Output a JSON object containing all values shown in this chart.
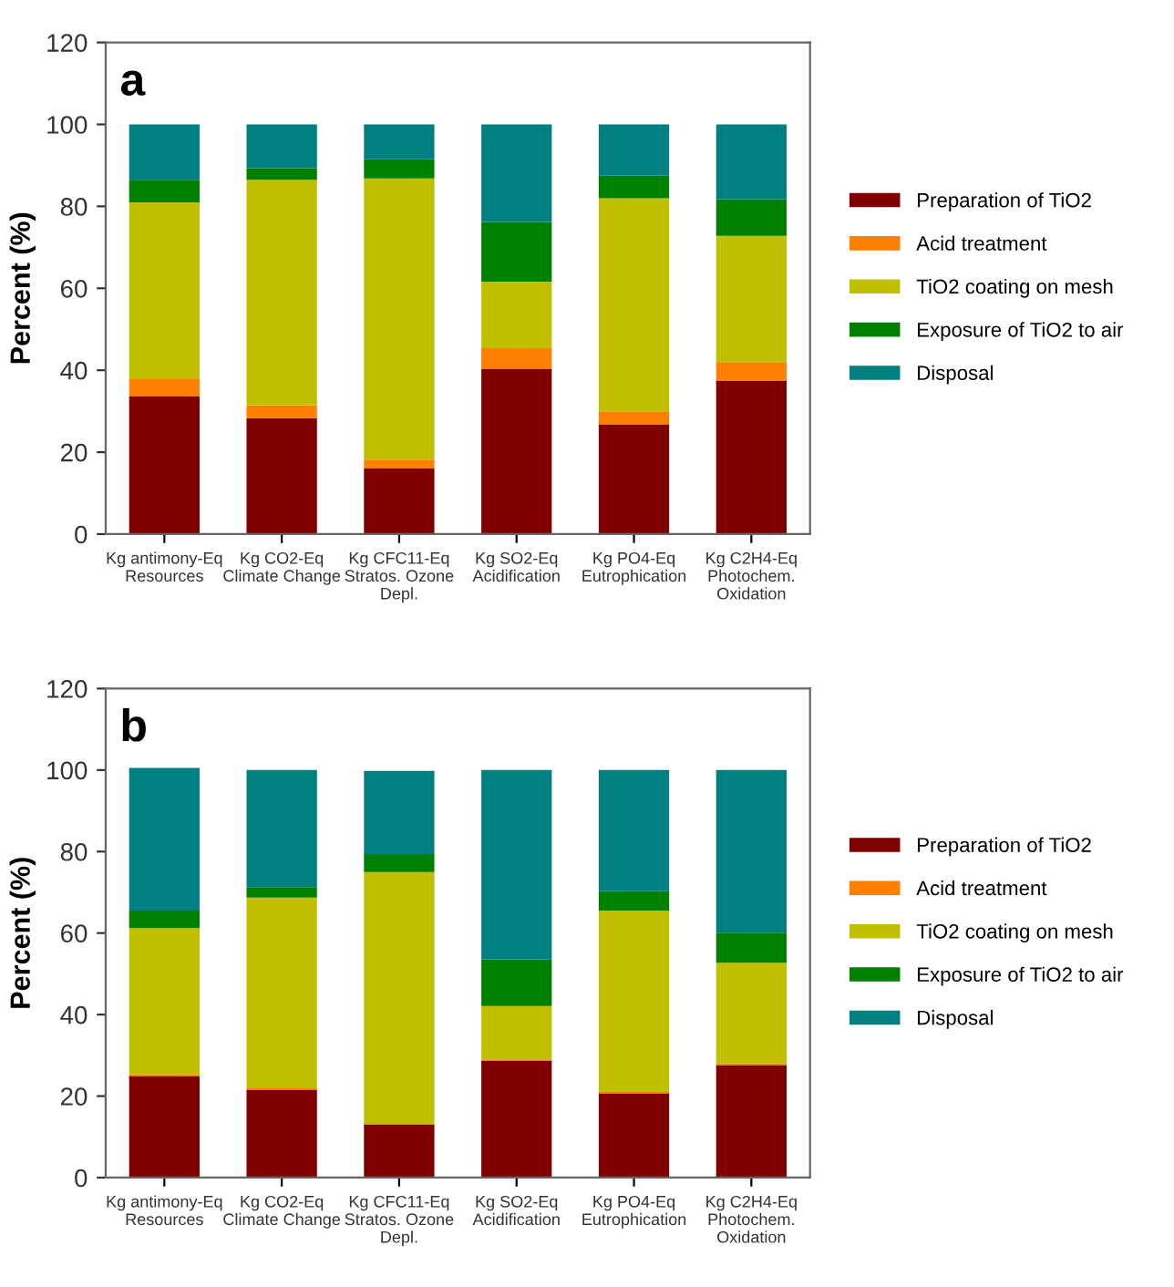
{
  "chart_data": [
    {
      "type": "bar",
      "stacked": true,
      "ylabel": "Percent (%)",
      "annotations": [
        "a"
      ],
      "legend": "right",
      "grid": false,
      "ylim": [
        0,
        120
      ],
      "yticks": [
        0,
        20,
        40,
        60,
        80,
        100,
        120
      ],
      "categories": [
        "Kg antimony-Eq\nResources",
        "Kg CO2-Eq\nClimate Change",
        "Kg CFC11-Eq\nStratos. Ozone\nDepl.",
        "Kg SO2-Eq\nAcidification",
        "Kg PO4-Eq\nEutrophication",
        "Kg C2H4-Eq\nPhotochem.\nOxidation"
      ],
      "series": [
        {
          "name": "Preparation of TiO2",
          "color": "#800000",
          "values": [
            33.7,
            28.3,
            16,
            40.4,
            26.8,
            37.5
          ]
        },
        {
          "name": "Acid treatment",
          "color": "#ff8000",
          "values": [
            4.1,
            3.2,
            2.2,
            5,
            3.2,
            4.5
          ]
        },
        {
          "name": "TiO2 coating on mesh",
          "color": "#c0c000",
          "values": [
            43.2,
            55,
            68.6,
            16.2,
            52,
            30.8
          ]
        },
        {
          "name": "Exposure of TiO2 to air",
          "color": "#008000",
          "values": [
            5.5,
            2.8,
            4.7,
            14.6,
            5.5,
            8.9
          ]
        },
        {
          "name": "Disposal",
          "color": "#008080",
          "values": [
            13.5,
            10.7,
            8.5,
            23.8,
            12.5,
            18.3
          ]
        }
      ]
    },
    {
      "type": "bar",
      "stacked": true,
      "ylabel": "Percent (%)",
      "annotations": [
        "b"
      ],
      "legend": "right",
      "grid": false,
      "ylim": [
        0,
        120
      ],
      "yticks": [
        0,
        20,
        40,
        60,
        80,
        100,
        120
      ],
      "categories": [
        "Kg antimony-Eq\nResources",
        "Kg CO2-Eq\nClimate Change",
        "Kg CFC11-Eq\nStratos. Ozone\nDepl.",
        "Kg SO2-Eq\nAcidification",
        "Kg PO4-Eq\nEutrophication",
        "Kg C2H4-Eq\nPhotochem.\nOxidation"
      ],
      "series": [
        {
          "name": "Preparation of TiO2",
          "color": "#800000",
          "values": [
            24.8,
            21.6,
            13.1,
            28.6,
            20.7,
            27.6
          ]
        },
        {
          "name": "Acid treatment",
          "color": "#ff8000",
          "values": [
            0.5,
            0.3,
            null,
            0.4,
            0.3,
            0.4
          ]
        },
        {
          "name": "TiO2 coating on mesh",
          "color": "#c0c000",
          "values": [
            35.9,
            46.8,
            61.9,
            13.1,
            44.5,
            24.7
          ]
        },
        {
          "name": "Exposure of TiO2 to air",
          "color": "#008000",
          "values": [
            4.3,
            2.6,
            4.4,
            11.4,
            4.8,
            7.4
          ]
        },
        {
          "name": "Disposal",
          "color": "#008080",
          "values": [
            35,
            28.7,
            20.4,
            46.5,
            29.7,
            39.9
          ]
        }
      ]
    }
  ]
}
